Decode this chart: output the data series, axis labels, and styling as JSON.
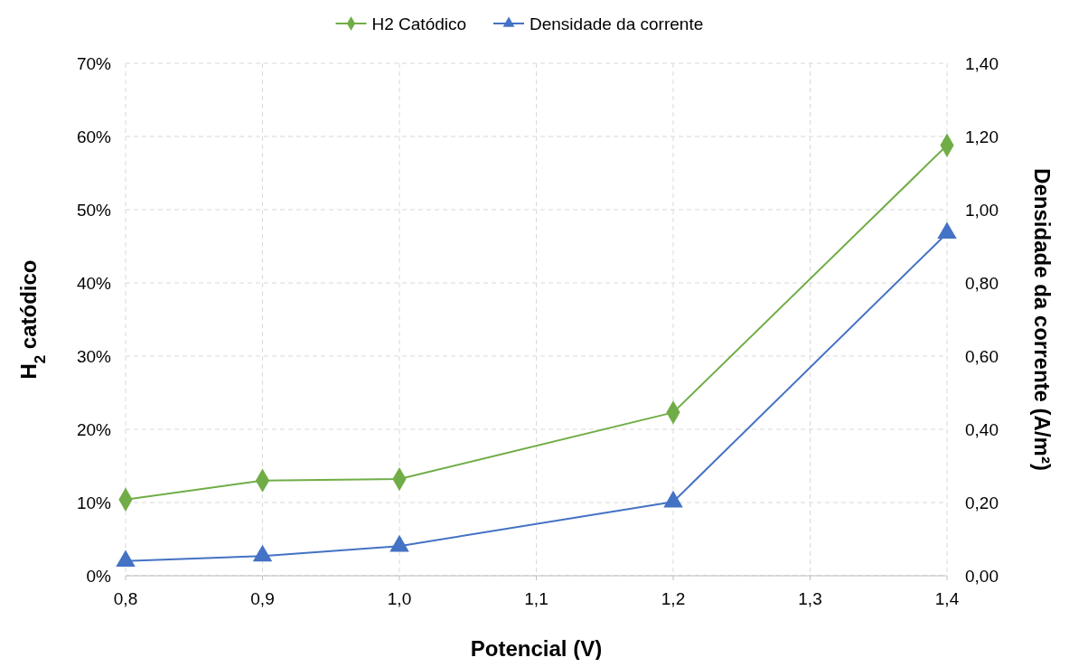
{
  "chart_data": {
    "type": "line",
    "xlabel": "Potencial (V)",
    "ylabel": "H$_{2}$ catódico",
    "y2label": "Densidade da corrente (A/m²)",
    "x": [
      0.8,
      0.9,
      1.0,
      1.2,
      1.4
    ],
    "series": [
      {
        "name": "H2 Catódico",
        "color": "#70ad47",
        "marker": "diamond",
        "values": [
          10.4,
          13.0,
          13.2,
          22.3,
          58.8
        ]
      },
      {
        "name": "Densidade da corrente",
        "color": "#4472c4",
        "marker": "triangle",
        "axis": "y2",
        "values": [
          0.04,
          0.054,
          0.081,
          0.202,
          0.936
        ]
      }
    ],
    "xlim": [
      0.8,
      1.4
    ],
    "xticks": [
      {
        "value": 0.8,
        "label": "0,8"
      },
      {
        "value": 0.9,
        "label": "0,9"
      },
      {
        "value": 1.0,
        "label": "1,0"
      },
      {
        "value": 1.1,
        "label": "1,1"
      },
      {
        "value": 1.2,
        "label": "1,2"
      },
      {
        "value": 1.3,
        "label": "1,3"
      },
      {
        "value": 1.4,
        "label": "1,4"
      }
    ],
    "ylim": [
      0,
      70
    ],
    "yticks": [
      {
        "value": 0,
        "label": "0%"
      },
      {
        "value": 10,
        "label": "10%"
      },
      {
        "value": 20,
        "label": "20%"
      },
      {
        "value": 30,
        "label": "30%"
      },
      {
        "value": 40,
        "label": "40%"
      },
      {
        "value": 50,
        "label": "50%"
      },
      {
        "value": 60,
        "label": "60%"
      },
      {
        "value": 70,
        "label": "70%"
      }
    ],
    "y2lim": [
      0,
      1.4
    ],
    "y2ticks": [
      {
        "value": 0,
        "label": "0,00"
      },
      {
        "value": 0.2,
        "label": "0,20"
      },
      {
        "value": 0.4,
        "label": "0,40"
      },
      {
        "value": 0.6,
        "label": "0,60"
      },
      {
        "value": 0.8,
        "label": "0,80"
      },
      {
        "value": 1.0,
        "label": "1,00"
      },
      {
        "value": 1.2,
        "label": "1,20"
      },
      {
        "value": 1.4,
        "label": "1,40"
      }
    ],
    "grid": true,
    "legend": "top",
    "line_style": "solid"
  }
}
